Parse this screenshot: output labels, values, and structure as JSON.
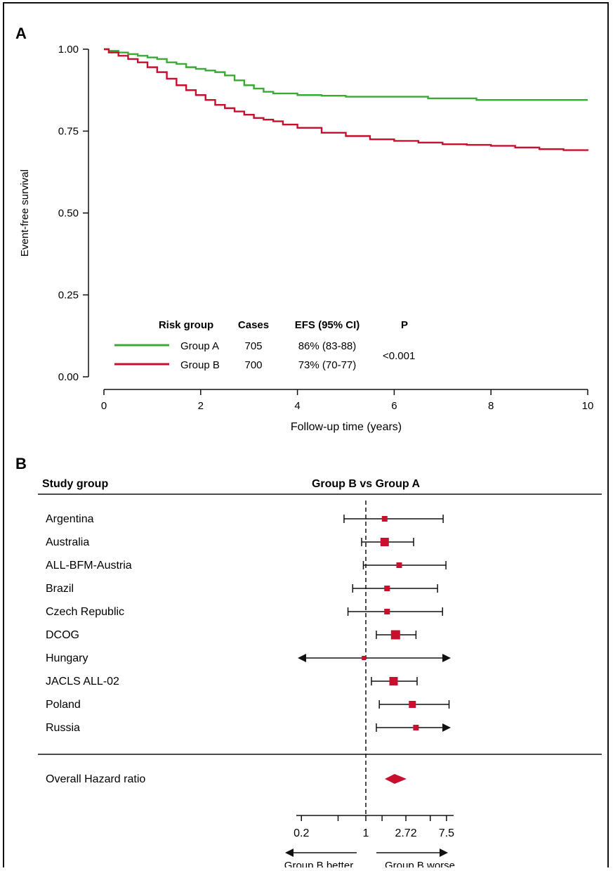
{
  "chart_data": [
    {
      "type": "line",
      "panel_label": "A",
      "xlabel": "Follow-up time (years)",
      "ylabel": "Event-free survival",
      "xlim": [
        0,
        10
      ],
      "ylim": [
        0,
        1
      ],
      "xticks": [
        "0",
        "2",
        "4",
        "6",
        "8",
        "10"
      ],
      "yticks": [
        "0.00",
        "0.25",
        "0.50",
        "0.75",
        "1.00"
      ],
      "grid": false,
      "series": [
        {
          "name": "Group A",
          "color": "#3aaa35",
          "x": [
            0,
            0.1,
            0.3,
            0.5,
            0.7,
            0.9,
            1.1,
            1.3,
            1.5,
            1.7,
            1.9,
            2.1,
            2.3,
            2.5,
            2.7,
            2.9,
            3.1,
            3.3,
            3.5,
            4,
            4.5,
            5,
            5.5,
            6,
            6.7,
            7,
            7.7,
            8,
            9,
            10
          ],
          "y": [
            1.0,
            0.995,
            0.99,
            0.985,
            0.98,
            0.975,
            0.97,
            0.96,
            0.955,
            0.945,
            0.94,
            0.935,
            0.93,
            0.92,
            0.905,
            0.89,
            0.88,
            0.87,
            0.865,
            0.86,
            0.858,
            0.855,
            0.855,
            0.855,
            0.85,
            0.85,
            0.845,
            0.845,
            0.845,
            0.845
          ]
        },
        {
          "name": "Group B",
          "color": "#c8102e",
          "x": [
            0,
            0.1,
            0.3,
            0.5,
            0.7,
            0.9,
            1.1,
            1.3,
            1.5,
            1.7,
            1.9,
            2.1,
            2.3,
            2.5,
            2.7,
            2.9,
            3.1,
            3.3,
            3.5,
            3.7,
            4,
            4.5,
            5,
            5.5,
            6,
            6.5,
            7,
            7.5,
            8,
            8.5,
            9,
            9.5,
            10
          ],
          "y": [
            1.0,
            0.99,
            0.98,
            0.97,
            0.96,
            0.945,
            0.93,
            0.91,
            0.89,
            0.875,
            0.86,
            0.845,
            0.83,
            0.82,
            0.81,
            0.8,
            0.79,
            0.785,
            0.78,
            0.77,
            0.76,
            0.745,
            0.735,
            0.725,
            0.72,
            0.715,
            0.71,
            0.708,
            0.705,
            0.7,
            0.695,
            0.692,
            0.69
          ]
        }
      ],
      "table": {
        "headers": [
          "Risk group",
          "Cases",
          "EFS (95% CI)",
          "P"
        ],
        "rows": [
          {
            "group": "Group A",
            "cases": "705",
            "efs": "86% (83-88)"
          },
          {
            "group": "Group B",
            "cases": "700",
            "efs": "73% (70-77)"
          }
        ],
        "p_value": "<0.001"
      }
    },
    {
      "type": "forest",
      "panel_label": "B",
      "col_header_left": "Study group",
      "col_header_right": "Group B vs Group A",
      "scale": "log",
      "xticks": [
        0.2,
        1,
        2.72,
        7.5
      ],
      "xtick_labels": [
        "0.2",
        "1",
        "2.72",
        "7.5"
      ],
      "ref_line": 1,
      "rows": [
        {
          "label": "Argentina",
          "hr": 1.6,
          "lo": 0.58,
          "hi": 6.9,
          "arrow_lo": false,
          "arrow_hi": false
        },
        {
          "label": "Australia",
          "hr": 1.6,
          "lo": 0.9,
          "hi": 3.3,
          "arrow_lo": false,
          "arrow_hi": false
        },
        {
          "label": "ALL-BFM-Austria",
          "hr": 2.3,
          "lo": 0.94,
          "hi": 7.4,
          "arrow_lo": false,
          "arrow_hi": false
        },
        {
          "label": "Brazil",
          "hr": 1.7,
          "lo": 0.72,
          "hi": 6.0,
          "arrow_lo": false,
          "arrow_hi": false
        },
        {
          "label": "Czech Republic",
          "hr": 1.7,
          "lo": 0.64,
          "hi": 6.8,
          "arrow_lo": false,
          "arrow_hi": false
        },
        {
          "label": "DCOG",
          "hr": 2.1,
          "lo": 1.3,
          "hi": 3.5,
          "arrow_lo": false,
          "arrow_hi": false
        },
        {
          "label": "Hungary",
          "hr": 0.95,
          "lo": 0.2,
          "hi": 7.5,
          "arrow_lo": true,
          "arrow_hi": true
        },
        {
          "label": "JACLS ALL-02",
          "hr": 2.0,
          "lo": 1.15,
          "hi": 3.6,
          "arrow_lo": false,
          "arrow_hi": false
        },
        {
          "label": "Poland",
          "hr": 3.2,
          "lo": 1.4,
          "hi": 8.0,
          "arrow_lo": false,
          "arrow_hi": false
        },
        {
          "label": "Russia",
          "hr": 3.5,
          "lo": 1.3,
          "hi": 7.5,
          "arrow_lo": false,
          "arrow_hi": true
        }
      ],
      "overall": {
        "label": "Overall Hazard ratio",
        "hr": 2.05,
        "lo": 1.65,
        "hi": 2.6
      },
      "marker_color": "#c8102e",
      "direction_left": "Group B better",
      "direction_right": "Group B worse"
    }
  ]
}
